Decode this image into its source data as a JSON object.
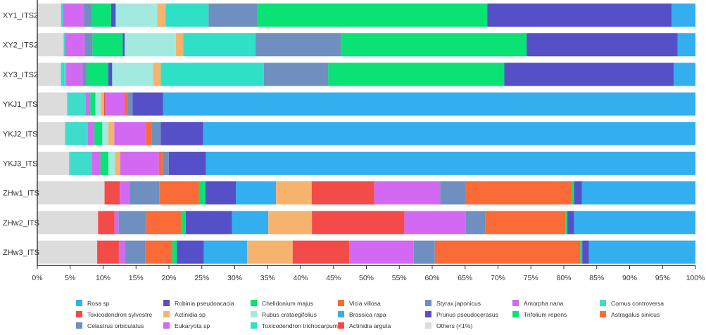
{
  "chart_data": {
    "type": "bar",
    "orientation": "horizontal",
    "stacked": true,
    "xlim": [
      0,
      100
    ],
    "x_ticks": [
      "0%",
      "5%",
      "10%",
      "15%",
      "20%",
      "25%",
      "30%",
      "35%",
      "40%",
      "45%",
      "50%",
      "55%",
      "60%",
      "65%",
      "70%",
      "75%",
      "80%",
      "85%",
      "90%",
      "95%",
      "100%"
    ],
    "categories": [
      "XY1_ITS2",
      "XY2_ITS2",
      "XY3_ITS2",
      "YKJ1_ITS",
      "YKJ2_ITS",
      "YKJ3_ITS",
      "ZHw1_ITS",
      "ZHw2_ITS",
      "ZHw3_ITS"
    ],
    "legend_position": "bottom",
    "series": [
      {
        "name": "Others (<1%)",
        "color": "#DCDCDC",
        "values": [
          3.6,
          4.0,
          3.6,
          4.5,
          4.2,
          4.8,
          10.2,
          9.2,
          9.1
        ]
      },
      {
        "name": "Toxicodendron trichocarpum",
        "color": "#2EE0C6",
        "values": [
          0.3,
          0.2,
          0.5,
          0,
          0.2,
          0.1,
          0,
          0,
          0
        ]
      },
      {
        "name": "Actinidia arguta",
        "color": "#F24B48",
        "values": [
          0,
          0,
          0,
          0,
          0,
          0,
          2.3,
          2.5,
          3.3
        ]
      },
      {
        "name": "Cornus controversa",
        "color": "#40DCCB",
        "values": [
          0,
          0,
          0.3,
          2.8,
          3.2,
          3.3,
          0,
          0,
          0
        ]
      },
      {
        "name": "Eukaryota sp",
        "color": "#D369F2",
        "values": [
          3.2,
          3.0,
          2.5,
          0.7,
          1.0,
          1.3,
          1.5,
          0.6,
          0.9
        ]
      },
      {
        "name": "Celastrus orbiculatus",
        "color": "#6E8FBF",
        "values": [
          1.2,
          1.2,
          0.6,
          0,
          0,
          0,
          4.5,
          4.2,
          3.1
        ]
      },
      {
        "name": "Chelidonium majus",
        "color": "#0AE275",
        "values": [
          2.9,
          4.6,
          3.3,
          0.8,
          1.2,
          1.2,
          0,
          0,
          0
        ]
      },
      {
        "name": "Prunus pseudocerasus",
        "color": "#5650C8",
        "values": [
          0.7,
          0.3,
          0.6,
          0,
          0,
          0,
          0,
          0,
          0
        ]
      },
      {
        "name": "Rubus crataegifolius",
        "color": "#A2EADF",
        "values": [
          6.3,
          7.8,
          6.2,
          0.8,
          0.9,
          1.0,
          0,
          0,
          0
        ]
      },
      {
        "name": "Actinidia sp",
        "color": "#F6B36E",
        "values": [
          1.3,
          1.1,
          1.2,
          0.5,
          0.9,
          0.8,
          0,
          0,
          0
        ]
      },
      {
        "name": "Toxicodendron sylvestre",
        "color": "#F24B48",
        "values": [
          0,
          0,
          0,
          0.2,
          0,
          0,
          0,
          0,
          0
        ]
      },
      {
        "name": "Eukaryota sp",
        "color": "#D369F2",
        "values": [
          0,
          0,
          0,
          2.9,
          4.8,
          5.8,
          0,
          0,
          0
        ]
      },
      {
        "name": "Vicia villosa",
        "color": "#FA6B37",
        "values": [
          0,
          0,
          0,
          0.4,
          0.8,
          0.6,
          6.0,
          5.3,
          4.1
        ]
      },
      {
        "name": "Trifolium repens",
        "color": "#0AE275",
        "values": [
          0,
          0,
          0,
          0,
          0,
          0,
          1.0,
          0.7,
          0.7
        ]
      },
      {
        "name": "Toxicodendron trichocarpum",
        "color": "#2EE0C6",
        "values": [
          6.5,
          11.0,
          15.7,
          0,
          0,
          0,
          0,
          0,
          0
        ]
      },
      {
        "name": "Styrax japonicus",
        "color": "#6E8FBF",
        "values": [
          7.4,
          13.0,
          9.8,
          0.8,
          1.4,
          0.9,
          0,
          0,
          0
        ]
      },
      {
        "name": "Robinia pseudoacacia",
        "color": "#5650C8",
        "values": [
          0,
          0,
          0,
          4.6,
          6.4,
          5.6,
          4.6,
          7.0,
          4.1
        ]
      },
      {
        "name": "Brassica rapa",
        "color": "#33AFEF",
        "values": [
          0,
          0,
          0,
          0,
          0,
          0,
          6.1,
          5.5,
          6.6
        ]
      },
      {
        "name": "Actinidia sp",
        "color": "#F6B36E",
        "values": [
          0,
          0,
          0,
          0,
          0,
          0,
          5.4,
          6.6,
          6.9
        ]
      },
      {
        "name": "Actinidia arguta",
        "color": "#F24B48",
        "values": [
          0,
          0,
          0,
          0,
          0,
          0,
          9.5,
          14.0,
          8.6
        ]
      },
      {
        "name": "Amorpha nana",
        "color": "#D369F2",
        "values": [
          0,
          0,
          0,
          0,
          0,
          0,
          10.0,
          9.3,
          9.8
        ]
      },
      {
        "name": "Celastrus orbiculatus",
        "color": "#6E8FBF",
        "values": [
          0,
          0,
          0,
          0,
          0,
          0,
          3.8,
          3.0,
          3.2
        ]
      },
      {
        "name": "Astragalus sinicus",
        "color": "#FA6B37",
        "values": [
          0,
          0,
          0,
          0,
          0,
          0,
          16.2,
          12.1,
          22.1
        ]
      },
      {
        "name": "Trifolium repens",
        "color": "#0AE275",
        "values": [
          34.9,
          28.3,
          26.8,
          0,
          0,
          0,
          0.3,
          0.3,
          0.3
        ]
      },
      {
        "name": "Prunus pseudocerasus",
        "color": "#5650C8",
        "values": [
          28.0,
          23.0,
          25.8,
          0,
          0,
          0,
          1.2,
          1.0,
          1.0
        ]
      },
      {
        "name": "Rosa sp",
        "color": "#33AFEF",
        "values": [
          3.6,
          2.7,
          3.3,
          80.5,
          74.2,
          73.7,
          17.2,
          18.4,
          16.2
        ]
      }
    ],
    "legend": [
      {
        "label": "Rosa sp",
        "color": "#33AFEF"
      },
      {
        "label": "Robinia pseudoacacia",
        "color": "#5650C8"
      },
      {
        "label": "Chelidonium majus",
        "color": "#0AE275"
      },
      {
        "label": "Vicia villosa",
        "color": "#FA6B37"
      },
      {
        "label": "Styrax japonicus",
        "color": "#6E8FBF"
      },
      {
        "label": "Amorpha nana",
        "color": "#D369F2"
      },
      {
        "label": "Cornus controversa",
        "color": "#40DCCB"
      },
      {
        "label": "Toxicodendron sylvestre",
        "color": "#F24B48"
      },
      {
        "label": "Actinidia sp",
        "color": "#F6B36E"
      },
      {
        "label": "Rubus crataegifolius",
        "color": "#A2EADF"
      },
      {
        "label": "Brassica rapa",
        "color": "#33AFEF"
      },
      {
        "label": "Prunus pseudocerasus",
        "color": "#5650C8"
      },
      {
        "label": "Trifolium repens",
        "color": "#0AE275"
      },
      {
        "label": "Astragalus sinicus",
        "color": "#FA6B37"
      },
      {
        "label": "Celastrus orbiculatus",
        "color": "#6E8FBF"
      },
      {
        "label": "Eukaryota sp",
        "color": "#D369F2"
      },
      {
        "label": "Toxicodendron trichocarpum",
        "color": "#2EE0C6"
      },
      {
        "label": "Actinidia arguta",
        "color": "#F24B48"
      },
      {
        "label": "Others (<1%)",
        "color": "#DCDCDC"
      }
    ]
  }
}
